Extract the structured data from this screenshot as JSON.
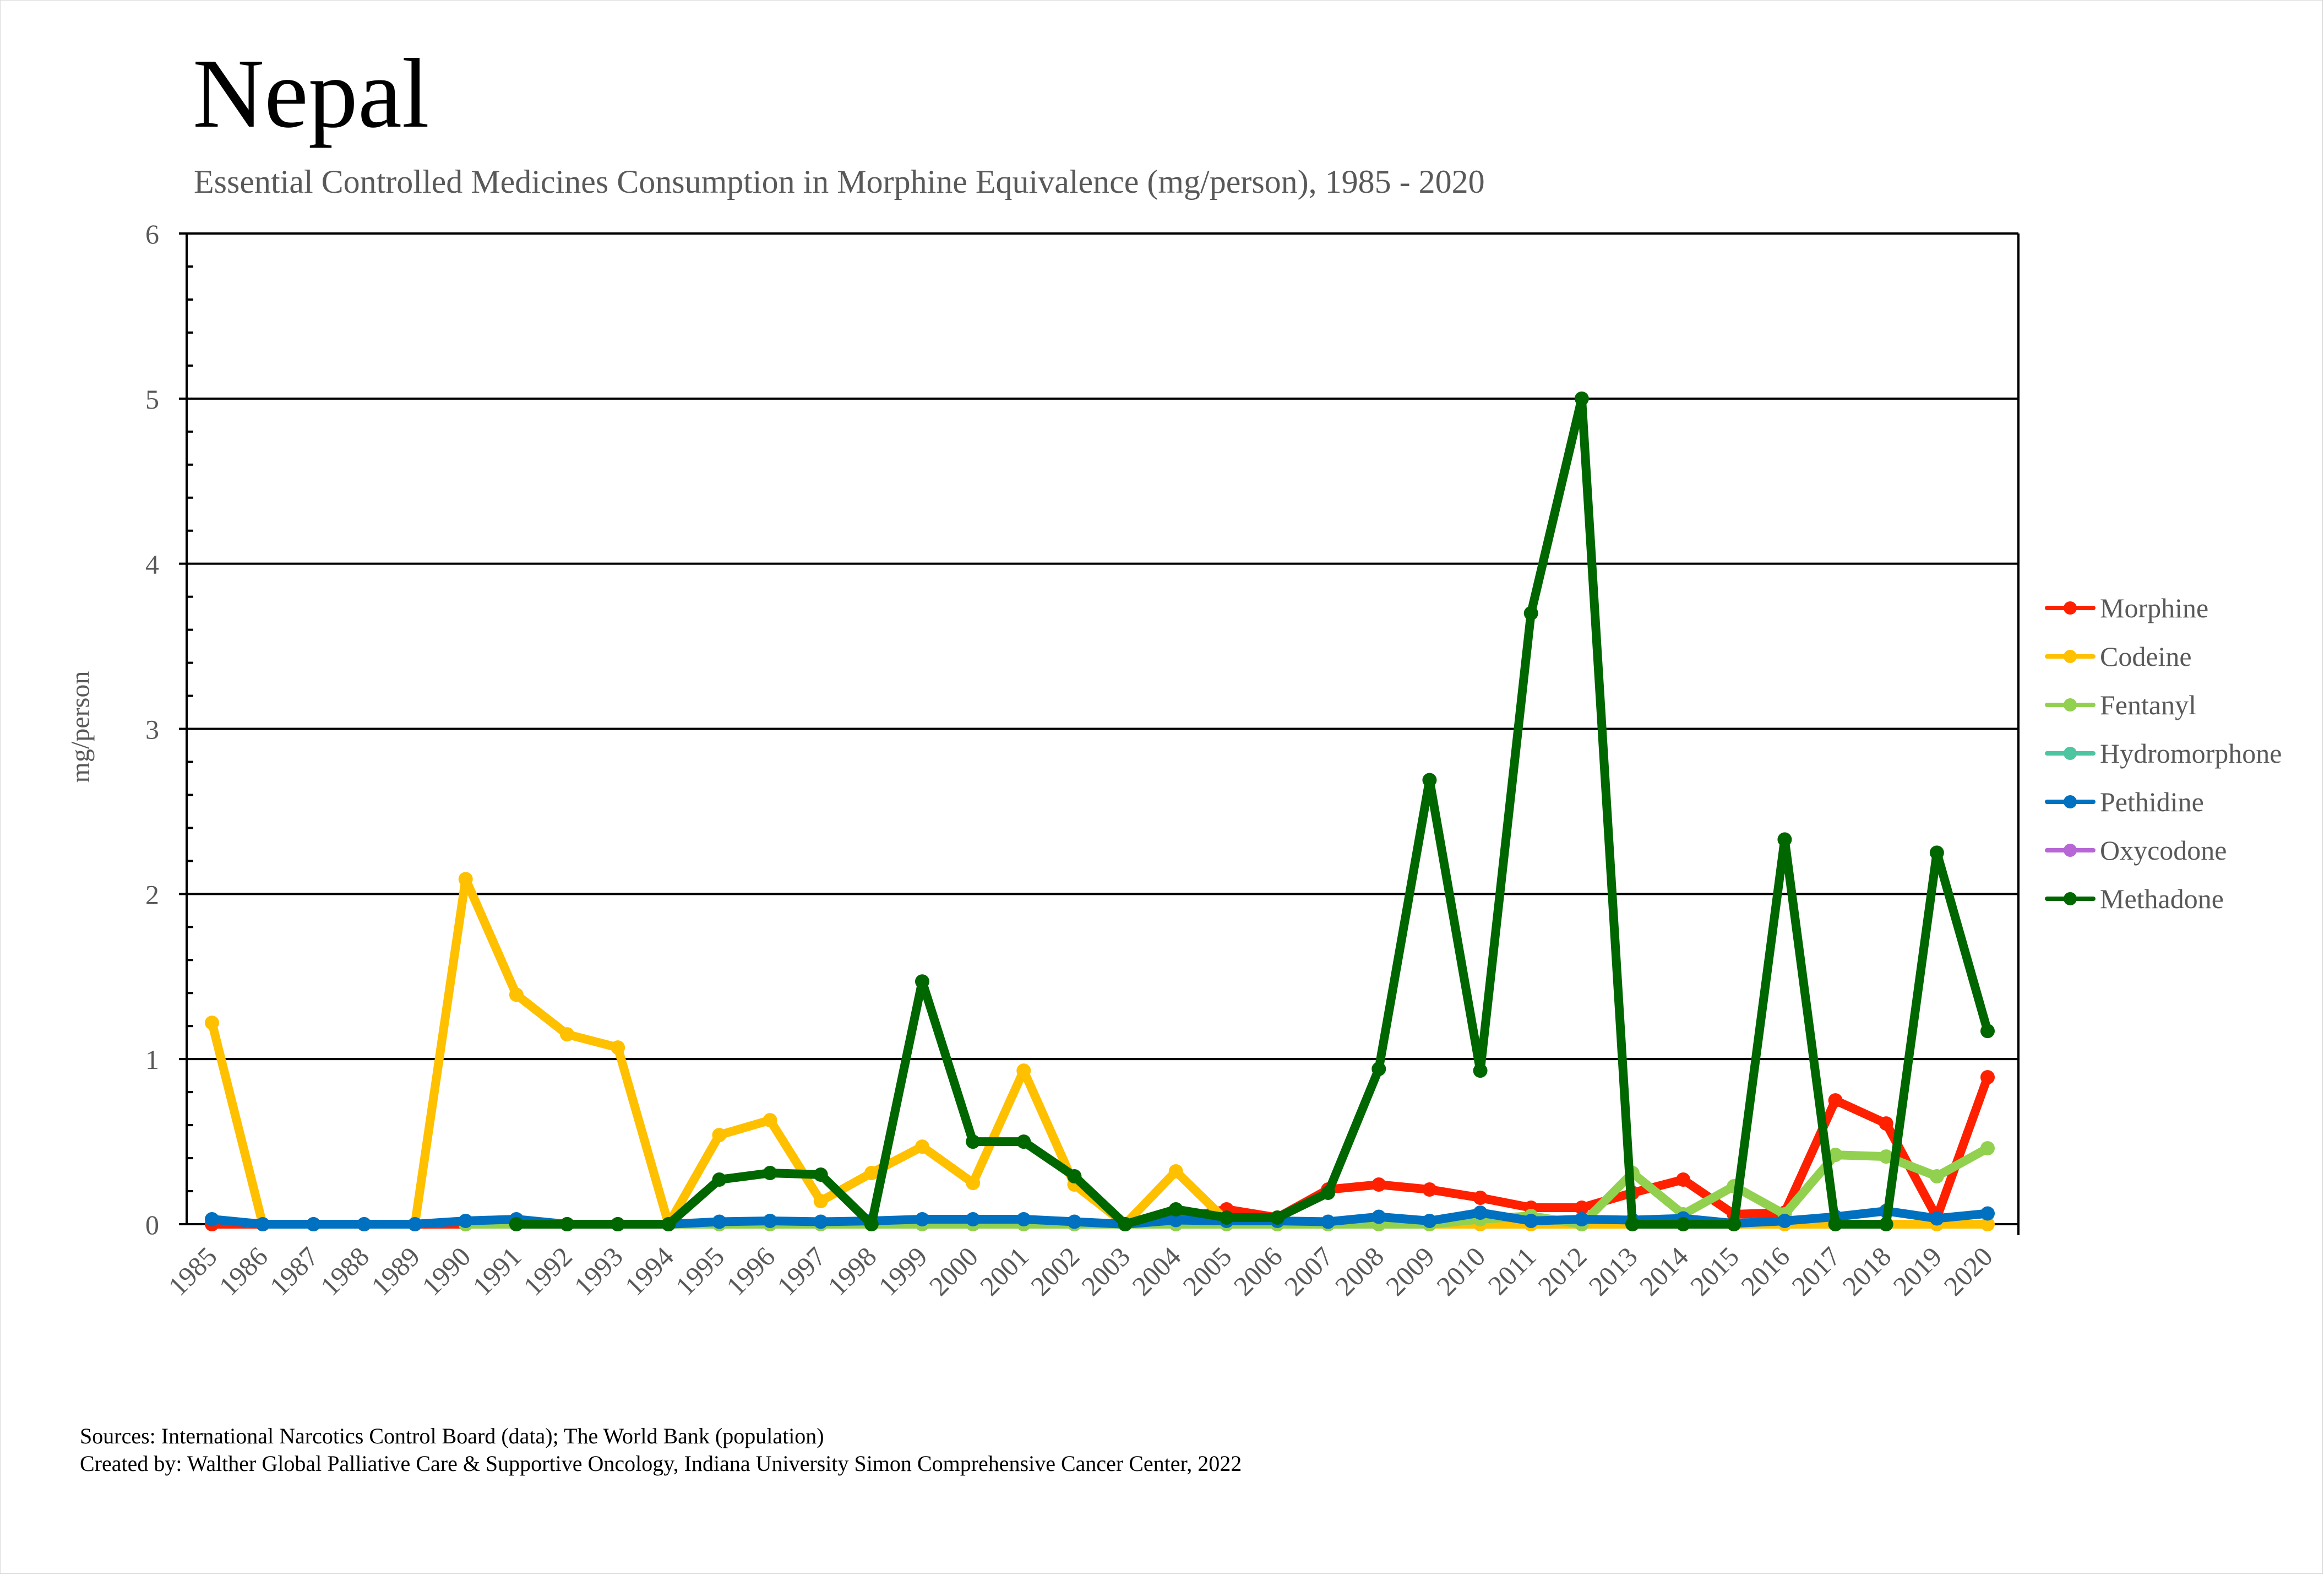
{
  "chart_data": {
    "type": "line",
    "title": "Nepal",
    "subtitle": "Essential Controlled Medicines Consumption in Morphine Equivalence (mg/person), 1985 - 2020",
    "xlabel": "",
    "ylabel": "mg/person",
    "ylim": [
      0,
      6
    ],
    "yticks": [
      "0",
      "1",
      "2",
      "3",
      "4",
      "5",
      "6"
    ],
    "grid": true,
    "legend_position": "right",
    "x": [
      "1985",
      "1986",
      "1987",
      "1988",
      "1989",
      "1990",
      "1991",
      "1992",
      "1993",
      "1994",
      "1995",
      "1996",
      "1997",
      "1998",
      "1999",
      "2000",
      "2001",
      "2002",
      "2003",
      "2004",
      "2005",
      "2006",
      "2007",
      "2008",
      "2009",
      "2010",
      "2011",
      "2012",
      "2013",
      "2014",
      "2015",
      "2016",
      "2017",
      "2018",
      "2019",
      "2020"
    ],
    "series": [
      {
        "name": "Morphine",
        "color": "#FF2000",
        "values": [
          0.0,
          0.0,
          0.0,
          0.0,
          0.0,
          0.0,
          0.01,
          0.0,
          0.0,
          0.0,
          0.005,
          0.005,
          0.005,
          0.01,
          0.01,
          0.01,
          0.01,
          0.005,
          0.0,
          0.03,
          0.09,
          0.04,
          0.21,
          0.24,
          0.21,
          0.16,
          0.1,
          0.1,
          0.19,
          0.27,
          0.06,
          0.07,
          0.75,
          0.61,
          0.04,
          0.89
        ]
      },
      {
        "name": "Codeine",
        "color": "#FFC000",
        "values": [
          1.22,
          0.0,
          0.0,
          0.0,
          0.0,
          2.09,
          1.39,
          1.15,
          1.07,
          0.0,
          0.54,
          0.63,
          0.14,
          0.31,
          0.47,
          0.25,
          0.93,
          0.24,
          0.0,
          0.32,
          0.02,
          0.0,
          0.0,
          0.0,
          0.0,
          0.0,
          0.0,
          0.0,
          0.0,
          0.0,
          0.0,
          0.0,
          0.0,
          0.0,
          0.0,
          0.0
        ]
      },
      {
        "name": "Fentanyl",
        "color": "#92D050",
        "values": [
          null,
          null,
          null,
          null,
          null,
          0.0,
          0.0,
          0.0,
          0.0,
          0.0,
          0.0,
          0.0,
          0.0,
          0.0,
          0.0,
          0.0,
          0.0,
          0.0,
          0.0,
          0.0,
          0.0,
          0.0,
          0.0,
          0.0,
          0.0,
          0.03,
          0.05,
          0.0,
          0.31,
          0.06,
          0.23,
          0.06,
          0.42,
          0.41,
          0.29,
          0.46
        ]
      },
      {
        "name": "Hydromorphone",
        "color": "#4DC5A0",
        "values": []
      },
      {
        "name": "Pethidine",
        "color": "#0070C0",
        "values": [
          0.03,
          0.0,
          0.0,
          0.0,
          0.0,
          0.02,
          0.03,
          0.0,
          0.0,
          0.0,
          0.015,
          0.02,
          0.015,
          0.02,
          0.03,
          0.03,
          0.03,
          0.015,
          0.0,
          0.025,
          0.02,
          0.02,
          0.015,
          0.045,
          0.02,
          0.07,
          0.02,
          0.03,
          0.025,
          0.035,
          0.005,
          0.02,
          0.045,
          0.08,
          0.035,
          0.065
        ]
      },
      {
        "name": "Oxycodone",
        "color": "#B766D6",
        "values": []
      },
      {
        "name": "Methadone",
        "color": "#006600",
        "values": [
          null,
          null,
          null,
          null,
          null,
          null,
          0.0,
          0.0,
          0.0,
          0.0,
          0.27,
          0.31,
          0.3,
          0.0,
          1.47,
          0.5,
          0.5,
          0.29,
          0.0,
          0.09,
          0.04,
          0.04,
          0.19,
          0.94,
          2.69,
          0.93,
          3.7,
          5.0,
          0.0,
          0.0,
          0.0,
          2.33,
          0.0,
          0.0,
          2.25,
          1.17
        ]
      }
    ]
  },
  "footer": {
    "sources": "Sources: International Narcotics Control Board (data); The World Bank (population)",
    "created_by": "Created by: Walther Global Palliative Care & Supportive Oncology, Indiana University Simon Comprehensive Cancer Center, 2022"
  }
}
